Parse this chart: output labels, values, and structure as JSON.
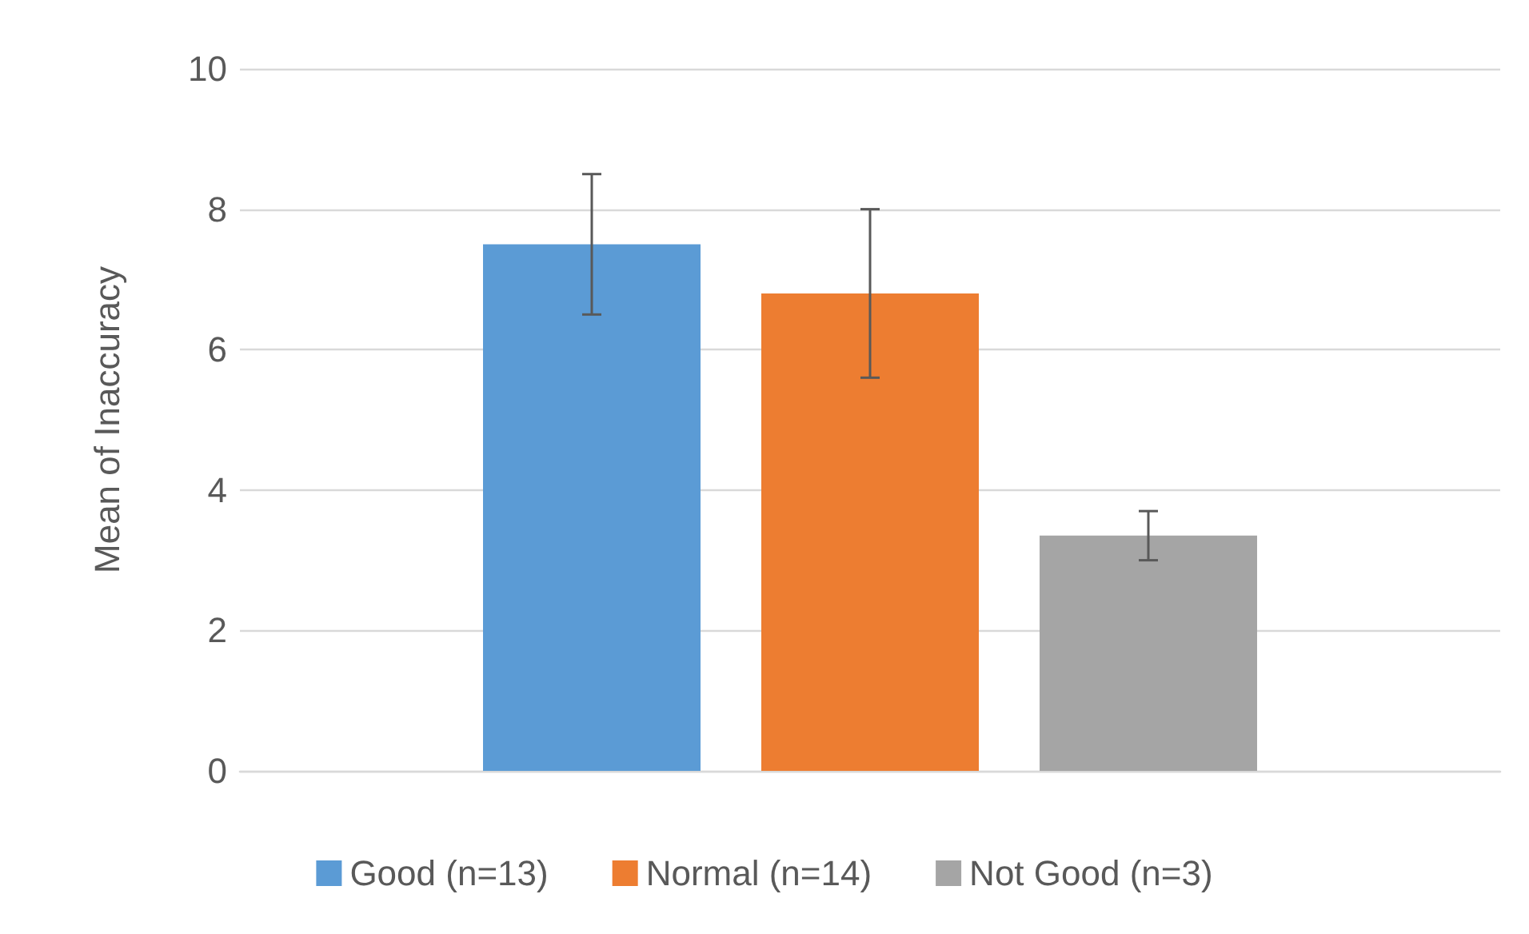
{
  "chart_data": {
    "type": "bar",
    "ylabel": "Mean of Inaccuracy",
    "categories": [
      null
    ],
    "series": [
      {
        "name": "Good (n=13)",
        "color": "#5b9bd5",
        "values": [
          7.5
        ],
        "errors": [
          1.0
        ]
      },
      {
        "name": "Normal (n=14)",
        "color": "#ed7d31",
        "values": [
          6.8
        ],
        "errors": [
          1.2
        ]
      },
      {
        "name": "Not Good (n=3)",
        "color": "#a5a5a5",
        "values": [
          3.35
        ],
        "errors": [
          0.35
        ]
      }
    ],
    "ylim": [
      0,
      10
    ],
    "yticks": [
      0,
      2,
      4,
      6,
      8,
      10
    ],
    "grid": "y",
    "legend": "bottom"
  }
}
